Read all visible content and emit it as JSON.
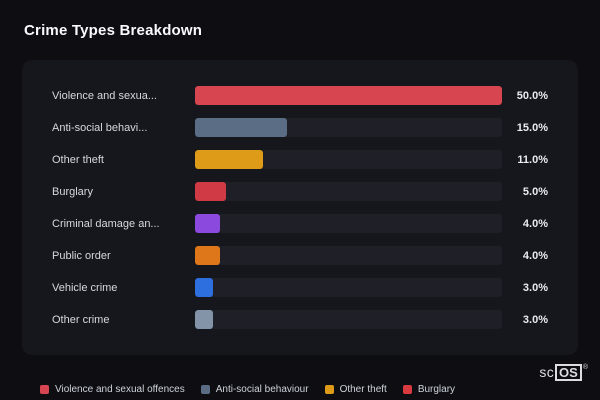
{
  "title": "Crime Types Breakdown",
  "chart_data": {
    "type": "bar",
    "orientation": "horizontal",
    "title": "Crime Types Breakdown",
    "categories": [
      "Violence and sexua...",
      "Anti-social behavi...",
      "Other theft",
      "Burglary",
      "Criminal damage an...",
      "Public order",
      "Vehicle crime",
      "Other crime"
    ],
    "values": [
      50.0,
      15.0,
      11.0,
      5.0,
      4.0,
      4.0,
      3.0,
      3.0
    ],
    "value_labels": [
      "50.0%",
      "15.0%",
      "11.0%",
      "5.0%",
      "4.0%",
      "4.0%",
      "3.0%",
      "3.0%"
    ],
    "bar_colors": [
      "#d64550",
      "#5b6d85",
      "#dd9b18",
      "#cf3a44",
      "#8b49dd",
      "#dd7719",
      "#2e6fe0",
      "#8494a8"
    ],
    "xlim": [
      0,
      50
    ],
    "track_color": "#1f1f28",
    "grid": false,
    "legend_position": "bottom"
  },
  "legend": [
    {
      "label": "Violence and sexual offences",
      "color": "#d64550"
    },
    {
      "label": "Anti-social behaviour",
      "color": "#5b6d85"
    },
    {
      "label": "Other theft",
      "color": "#dd9b18"
    },
    {
      "label": "Burglary",
      "color": "#d93a40"
    }
  ],
  "branding": {
    "prefix": "sc",
    "box": "OS",
    "reg": "®"
  }
}
